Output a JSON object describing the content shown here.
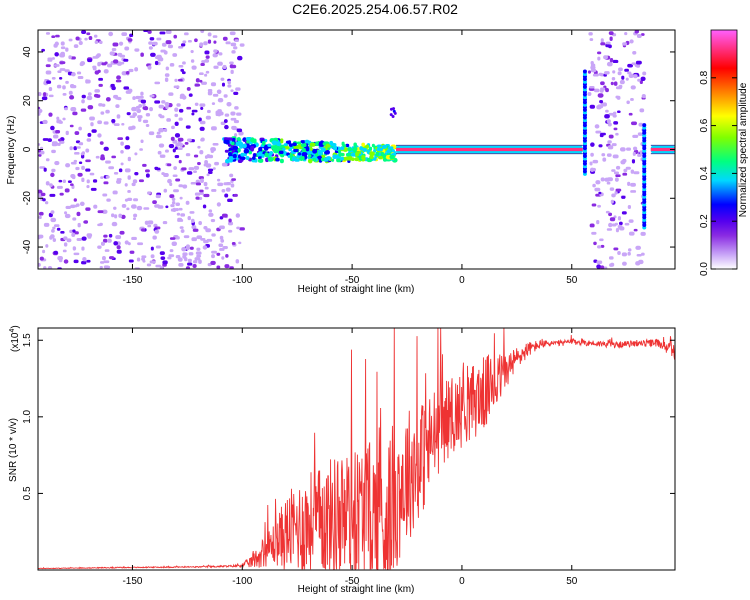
{
  "title": "C2E6.2025.254.06.57.R02",
  "chart_data": [
    {
      "type": "heatmap",
      "title": "C2E6.2025.254.06.57.R02",
      "xlabel": "Height of straight line (km)",
      "ylabel": "Frequency (Hz)",
      "xlim": [
        -193,
        97
      ],
      "ylim": [
        -49,
        49
      ],
      "x_ticks": [
        -150,
        -100,
        -50,
        0,
        50
      ],
      "x_tick_labels": [
        "-150",
        "-100",
        "-50",
        "0",
        "50"
      ],
      "y_ticks": [
        -40,
        -20,
        0,
        20,
        40
      ],
      "y_tick_labels": [
        "-40",
        "-20",
        "0",
        "20",
        "40"
      ],
      "colorbar": {
        "label": "Normalized spectral amplitude",
        "range": [
          0,
          1
        ],
        "ticks": [
          0.0,
          0.2,
          0.4,
          0.6,
          0.8
        ],
        "tick_labels": [
          "0.0",
          "0.2",
          "0.4",
          "0.6",
          "0.8"
        ],
        "colors": [
          "#ffffff",
          "#c9a6f7",
          "#8a2be2",
          "#5500ee",
          "#0000ff",
          "#00d8ff",
          "#00ff80",
          "#80ff00",
          "#ffff00",
          "#ff8000",
          "#ff0000",
          "#ff3080",
          "#ff60ff"
        ]
      },
      "regions": [
        {
          "description": "broadband noise",
          "x_range": [
            -193,
            -100
          ],
          "freq_range": [
            -49,
            49
          ],
          "amplitude": 0.2
        },
        {
          "description": "carrier, broadening",
          "x_range": [
            -108,
            -30
          ],
          "freq_center": 0,
          "freq_halfwidth_range": [
            5,
            3
          ],
          "amplitude_range": [
            0.35,
            0.55
          ]
        },
        {
          "description": "carrier, stable",
          "x_range": [
            -30,
            55
          ],
          "freq_center": 0,
          "amplitude": 0.95
        },
        {
          "description": "spur",
          "x": -31,
          "freq": 15,
          "amplitude": 0.25
        },
        {
          "description": "noise band",
          "x_range": [
            58,
            83
          ],
          "freq_range": [
            -49,
            49
          ],
          "amplitude": 0.2
        },
        {
          "description": "vertical line",
          "x": 56,
          "freq_range": [
            -10,
            32
          ],
          "amplitude": 0.3
        },
        {
          "description": "vertical line",
          "x": 83,
          "freq_range": [
            -32,
            10
          ],
          "amplitude": 0.3
        },
        {
          "description": "carrier, after",
          "x_range": [
            86,
            97
          ],
          "freq_center": 0,
          "amplitude": 0.95
        }
      ]
    },
    {
      "type": "line",
      "xlabel": "Height of straight line (km)",
      "ylabel": "SNR (10 * v/v)",
      "y_multiplier_label": "(x10",
      "y_multiplier_exp": "4",
      "y_multiplier_close": ")",
      "xlim": [
        -193,
        97
      ],
      "ylim": [
        0,
        1.58
      ],
      "x_ticks": [
        -150,
        -100,
        -50,
        0,
        50
      ],
      "x_tick_labels": [
        "-150",
        "-100",
        "-50",
        "0",
        "50"
      ],
      "y_ticks": [
        0.5,
        1.0,
        1.5
      ],
      "y_tick_labels": [
        "0.5",
        "1.0",
        "1.5"
      ],
      "color": "#ee3333",
      "series": [
        {
          "x": [
            -193,
            -180,
            -160,
            -140,
            -120,
            -105,
            -100,
            -95,
            -90,
            -85,
            -80,
            -75,
            -70,
            -65,
            -60,
            -55,
            -50,
            -45,
            -40,
            -35,
            -30,
            -25,
            -20,
            -15,
            -10,
            -5,
            0,
            5,
            10,
            15,
            20,
            25,
            30,
            35,
            40,
            45,
            50,
            60,
            70,
            80,
            90,
            97
          ],
          "y": [
            0.01,
            0.012,
            0.015,
            0.018,
            0.02,
            0.025,
            0.03,
            0.06,
            0.12,
            0.18,
            0.24,
            0.28,
            0.3,
            0.32,
            0.34,
            0.33,
            0.35,
            0.38,
            0.36,
            0.3,
            0.5,
            0.62,
            0.7,
            0.8,
            0.95,
            1.0,
            1.05,
            1.1,
            1.15,
            1.22,
            1.3,
            1.38,
            1.44,
            1.47,
            1.48,
            1.48,
            1.49,
            1.48,
            1.47,
            1.48,
            1.48,
            1.42
          ],
          "noise_amplitude": [
            0.002,
            0.002,
            0.003,
            0.003,
            0.004,
            0.006,
            0.01,
            0.05,
            0.1,
            0.15,
            0.25,
            0.3,
            0.35,
            0.35,
            0.4,
            0.45,
            0.45,
            0.45,
            0.5,
            0.55,
            0.5,
            0.45,
            0.4,
            0.35,
            0.3,
            0.25,
            0.25,
            0.25,
            0.25,
            0.2,
            0.12,
            0.08,
            0.05,
            0.03,
            0.02,
            0.02,
            0.02,
            0.02,
            0.02,
            0.02,
            0.03,
            0.05
          ]
        }
      ]
    }
  ]
}
